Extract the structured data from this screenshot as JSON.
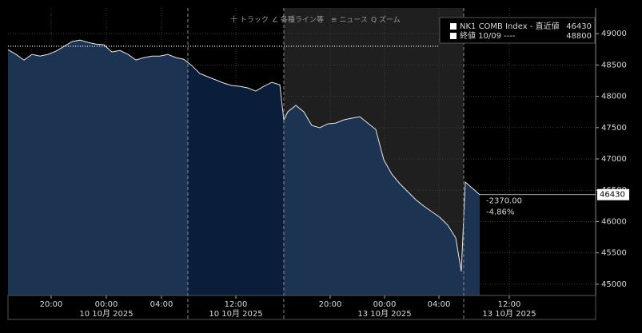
{
  "toolbar": {
    "items": [
      "十 トラック",
      "∠ 各種ライン等",
      "≡ ニュース",
      "Q ズーム"
    ]
  },
  "chart_data": {
    "type": "line",
    "x": [
      0,
      1,
      2,
      3,
      4,
      5,
      6,
      7,
      8,
      9,
      10,
      11,
      12,
      13,
      14,
      15,
      16,
      17,
      18,
      19,
      20,
      21,
      22,
      23,
      24,
      25,
      26,
      27,
      28,
      29,
      30,
      31,
      32,
      33,
      34,
      34.5,
      35,
      36,
      37,
      38,
      39,
      40,
      41,
      42,
      43,
      44,
      45,
      46,
      47,
      48,
      49,
      50,
      51,
      52,
      53,
      54,
      55,
      56,
      56.7,
      57.2,
      58,
      59
    ],
    "series": [
      {
        "name": "NK1 COMB Index - 直近値",
        "color": "#e8e8e8",
        "values": [
          48745,
          48669,
          48580,
          48669,
          48643,
          48669,
          48720,
          48796,
          48873,
          48898,
          48860,
          48834,
          48822,
          48707,
          48732,
          48669,
          48580,
          48618,
          48643,
          48643,
          48669,
          48618,
          48592,
          48490,
          48363,
          48312,
          48261,
          48210,
          48172,
          48159,
          48134,
          48083,
          48159,
          48223,
          48185,
          47624,
          47752,
          47854,
          47752,
          47535,
          47497,
          47560,
          47573,
          47624,
          47650,
          47675,
          47573,
          47471,
          46987,
          46758,
          46605,
          46478,
          46350,
          46248,
          46159,
          46070,
          45943,
          45739,
          45204,
          46631,
          46541,
          46430
        ]
      }
    ],
    "reference": {
      "name": "終値 10/09 ----",
      "value": 48800,
      "color": "#ffffff"
    },
    "change": "-2370.00",
    "change_pct": "-4.86%",
    "xlim": [
      0,
      73.5
    ],
    "xticks": [
      {
        "value": 5.4,
        "label": "20:00"
      },
      {
        "value": 12.3,
        "label": "00:00"
      },
      {
        "value": 19.2,
        "label": "04:00"
      },
      {
        "value": 28.5,
        "label": "12:00"
      },
      {
        "value": 40.3,
        "label": "20:00"
      },
      {
        "value": 47.1,
        "label": "00:00"
      },
      {
        "value": 53.9,
        "label": "04:00"
      },
      {
        "value": 62.7,
        "label": "12:00"
      }
    ],
    "xdate_labels": [
      {
        "value": 12.3,
        "label": "10 10月 2025"
      },
      {
        "value": 28.5,
        "label": "10 10月 2025"
      },
      {
        "value": 47.1,
        "label": "13 10月 2025"
      },
      {
        "value": 62.7,
        "label": "13 10月 2025"
      }
    ],
    "session_breaks": [
      22.5,
      34.5,
      57
    ],
    "ylim": [
      44820,
      49410
    ],
    "yticks": [
      45000,
      45500,
      46000,
      46500,
      47000,
      47500,
      48000,
      48500,
      49000
    ],
    "grid": true
  }
}
